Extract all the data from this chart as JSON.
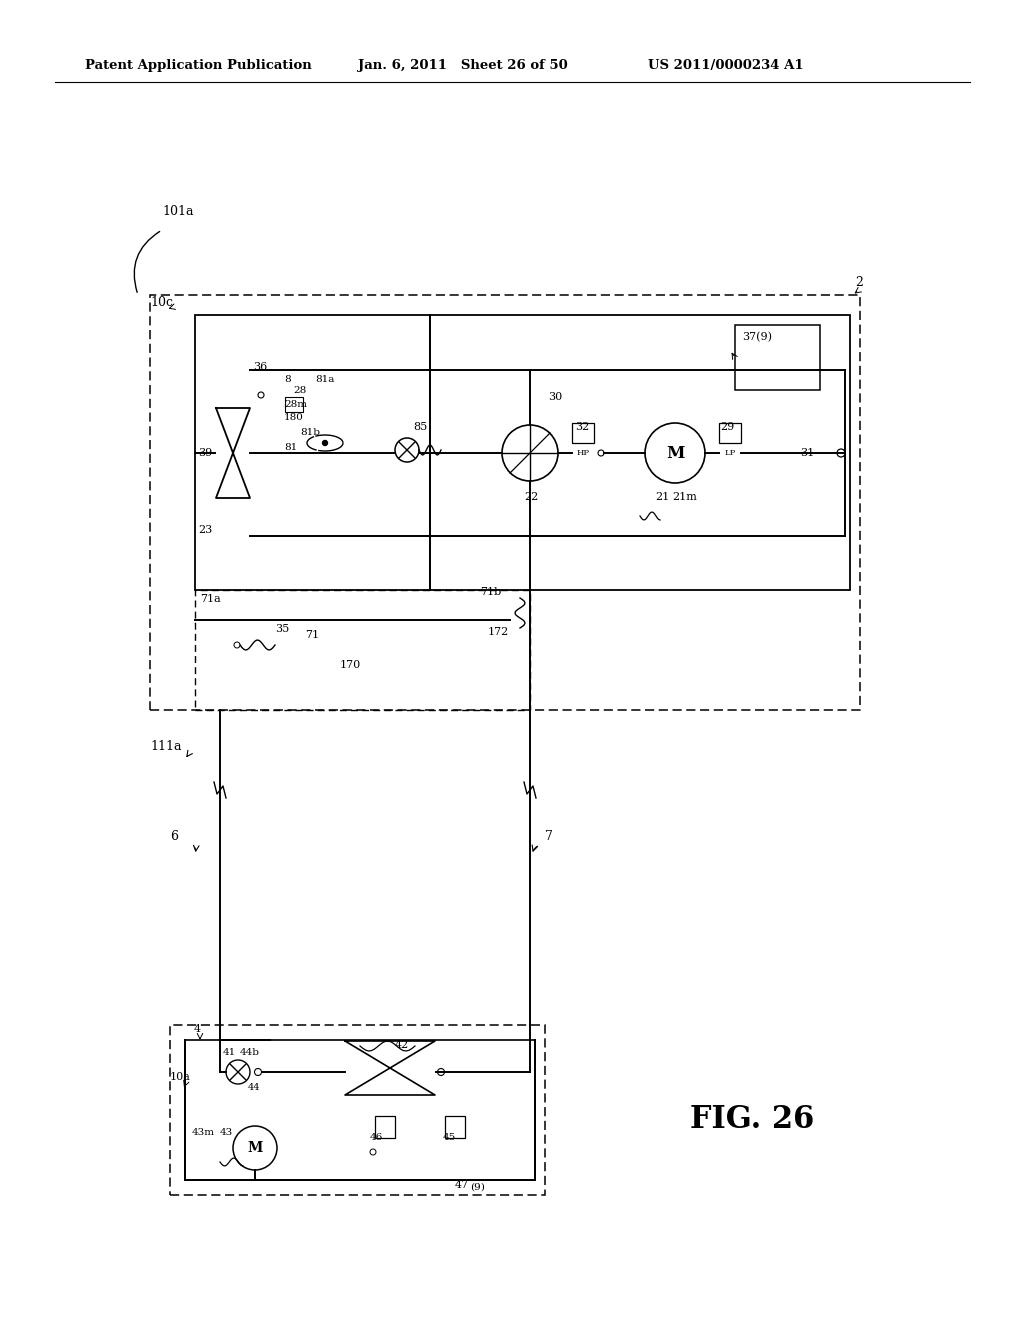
{
  "title_left": "Patent Application Publication",
  "title_mid": "Jan. 6, 2011   Sheet 26 of 50",
  "title_right": "US 2011/0000234 A1",
  "fig_label": "FIG. 26",
  "bg_color": "#ffffff",
  "line_color": "#000000"
}
